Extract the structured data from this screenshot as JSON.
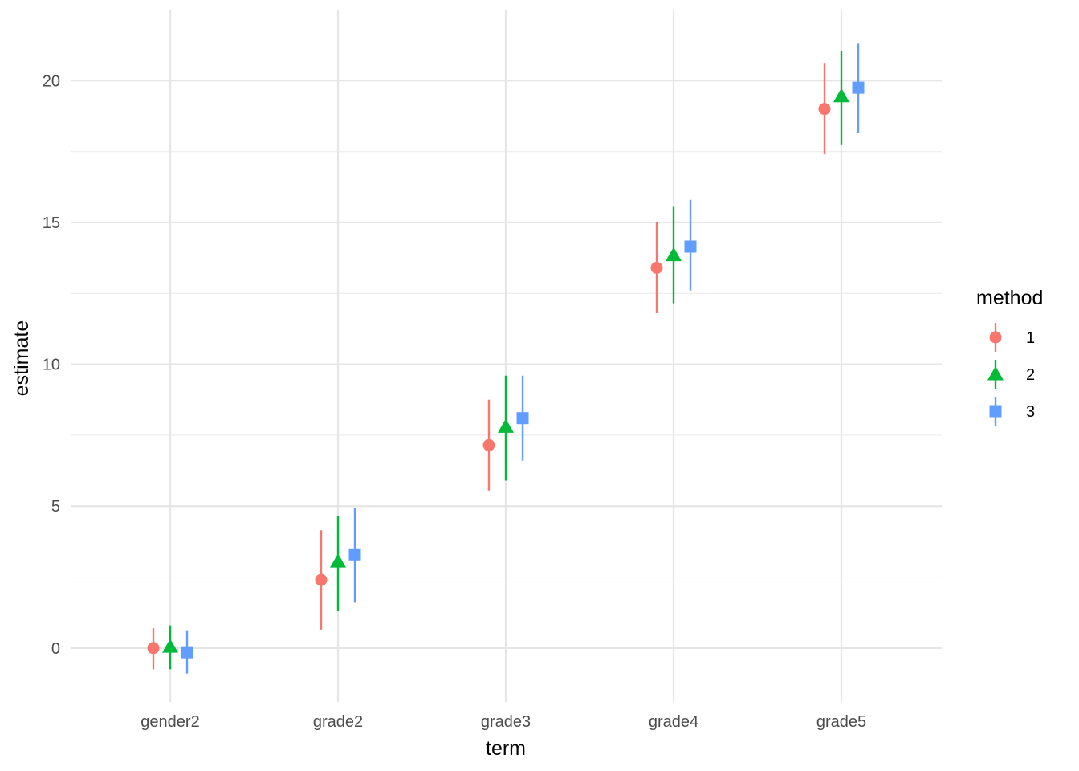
{
  "chart_data": {
    "type": "scatter",
    "subtype": "pointrange",
    "title": "",
    "xlabel": "term",
    "ylabel": "estimate",
    "categories": [
      "gender2",
      "grade2",
      "grade3",
      "grade4",
      "grade5"
    ],
    "ylim": [
      -1.9,
      22.5
    ],
    "yticks": [
      0,
      5,
      10,
      15,
      20
    ],
    "grid": true,
    "legend": {
      "title": "method",
      "position": "right"
    },
    "series": [
      {
        "name": "1",
        "color": "#F8766D",
        "shape": "circle",
        "estimate": [
          0.0,
          2.4,
          7.15,
          13.4,
          19.0
        ],
        "low": [
          -0.75,
          0.65,
          5.55,
          11.8,
          17.4
        ],
        "high": [
          0.7,
          4.15,
          8.75,
          15.0,
          20.6
        ]
      },
      {
        "name": "2",
        "color": "#00BA38",
        "shape": "triangle",
        "estimate": [
          0.05,
          3.05,
          7.8,
          13.85,
          19.45
        ],
        "low": [
          -0.75,
          1.3,
          5.9,
          12.15,
          17.75
        ],
        "high": [
          0.8,
          4.65,
          9.6,
          15.55,
          21.05
        ]
      },
      {
        "name": "3",
        "color": "#619CFF",
        "shape": "square",
        "estimate": [
          -0.15,
          3.3,
          8.1,
          14.15,
          19.75
        ],
        "low": [
          -0.9,
          1.6,
          6.6,
          12.6,
          18.15
        ],
        "high": [
          0.6,
          4.95,
          9.6,
          15.8,
          21.3
        ]
      }
    ]
  }
}
